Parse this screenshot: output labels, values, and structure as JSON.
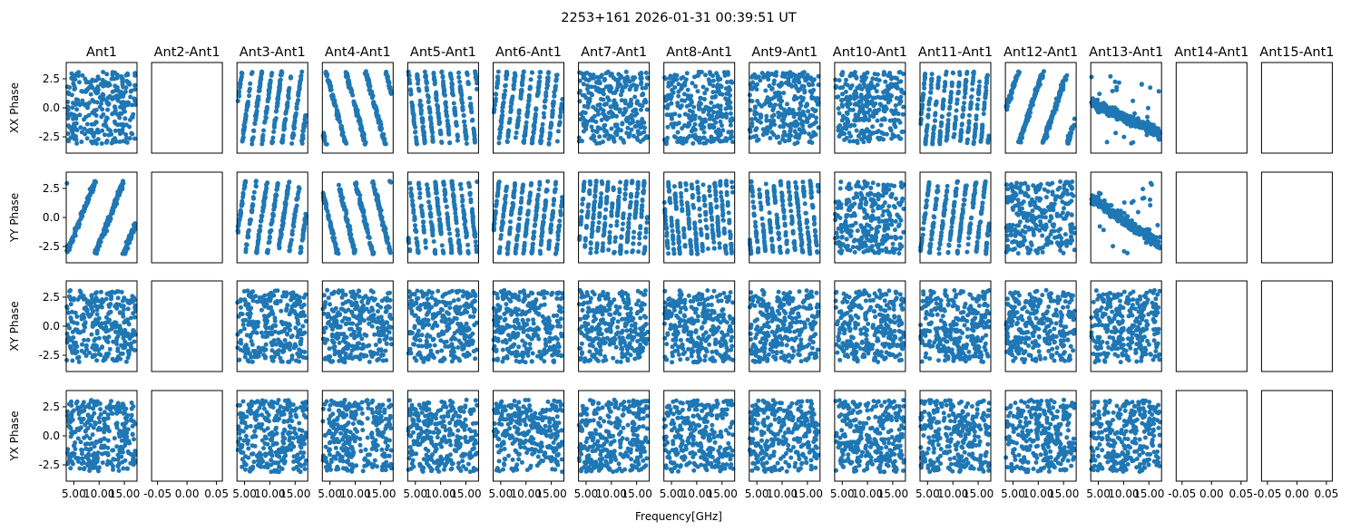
{
  "figure": {
    "title": "2253+161 2026-01-31 00:39:51 UT",
    "xlabel": "Frequency[GHz]"
  },
  "colors": {
    "points": "#1f77b4",
    "axes": "#000000",
    "background": "#ffffff"
  },
  "chart_data": {
    "type": "scatter",
    "grid": false,
    "columns": [
      "Ant1",
      "Ant2-Ant1",
      "Ant3-Ant1",
      "Ant4-Ant1",
      "Ant5-Ant1",
      "Ant6-Ant1",
      "Ant7-Ant1",
      "Ant8-Ant1",
      "Ant9-Ant1",
      "Ant10-Ant1",
      "Ant11-Ant1",
      "Ant12-Ant1",
      "Ant13-Ant1",
      "Ant14-Ant1",
      "Ant15-Ant1"
    ],
    "rows": [
      "XX Phase",
      "YY Phase",
      "XY Phase",
      "YX Phase"
    ],
    "ylim": [
      -3.9,
      3.9
    ],
    "yticks": [
      "2.5",
      "0.0",
      "-2.5"
    ],
    "ytick_values": [
      2.5,
      0.0,
      -2.5
    ],
    "xlim_data_panels": [
      3.5,
      17.5
    ],
    "xticks_data_panels": [
      "5.00",
      "10.00",
      "15.00"
    ],
    "xtick_values_data_panels": [
      5,
      10,
      15
    ],
    "xlim_empty_panels": [
      -0.06,
      0.06
    ],
    "xticks_empty_panels": [
      "-0.05",
      "0.00",
      "0.05"
    ],
    "xtick_values_empty_panels": [
      -0.05,
      0.0,
      0.05
    ],
    "empty_columns": [
      "Ant2-Ant1",
      "Ant14-Ant1",
      "Ant15-Ant1"
    ],
    "frequency_range_ghz": [
      3.6,
      17.2
    ],
    "points_per_panel": 300,
    "panel_delay_slopes_rad_per_ghz": {
      "XX Phase": {
        "Ant3-Ant1": 3.2,
        "Ant4-Ant1": -1.6,
        "Ant5-Ant1": -3.8,
        "Ant6-Ant1": 3.8,
        "Ant11-Ant1": 4.6,
        "Ant12-Ant1": 1.3
      },
      "YY Phase": {
        "Ant1": 1.1,
        "Ant3-Ant1": 2.9,
        "Ant4-Ant1": -1.8,
        "Ant5-Ant1": -3.8,
        "Ant6-Ant1": 3.9,
        "Ant7-Ant1": 5.3,
        "Ant8-Ant1": -5.5,
        "Ant9-Ant1": -4.3,
        "Ant11-Ant1": 3.4
      }
    },
    "ant13_trend": {
      "XX Phase": {
        "phase_at_3_6_ghz": 0.4,
        "slope_rad_per_ghz": -0.19
      },
      "YY Phase": {
        "phase_at_3_6_ghz": 1.7,
        "slope_rad_per_ghz": -0.3
      }
    }
  }
}
